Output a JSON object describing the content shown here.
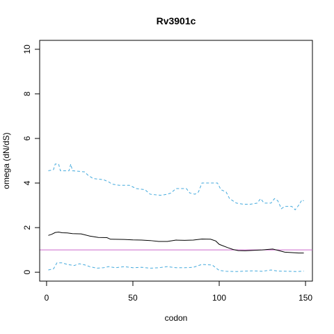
{
  "chart_data": {
    "type": "line",
    "title": "Rv3901c",
    "xlabel": "codon",
    "ylabel": "omega (dN/dS)",
    "xlim": [
      -4,
      154
    ],
    "ylim": [
      -0.4,
      10.4
    ],
    "xticks": [
      0,
      50,
      100,
      150
    ],
    "yticks": [
      0,
      2,
      4,
      6,
      8,
      10
    ],
    "grid": false,
    "reference_line": {
      "y": 1,
      "color": "#cc66cc"
    },
    "series": [
      {
        "style": "solid",
        "color": "#000000",
        "points": [
          [
            1,
            1.65
          ],
          [
            3,
            1.7
          ],
          [
            5,
            1.78
          ],
          [
            7,
            1.8
          ],
          [
            9,
            1.77
          ],
          [
            12,
            1.76
          ],
          [
            15,
            1.73
          ],
          [
            20,
            1.72
          ],
          [
            25,
            1.62
          ],
          [
            30,
            1.56
          ],
          [
            35,
            1.55
          ],
          [
            37,
            1.48
          ],
          [
            45,
            1.47
          ],
          [
            50,
            1.45
          ],
          [
            55,
            1.44
          ],
          [
            60,
            1.42
          ],
          [
            65,
            1.38
          ],
          [
            70,
            1.38
          ],
          [
            75,
            1.44
          ],
          [
            80,
            1.43
          ],
          [
            85,
            1.44
          ],
          [
            90,
            1.49
          ],
          [
            95,
            1.48
          ],
          [
            98,
            1.4
          ],
          [
            100,
            1.25
          ],
          [
            105,
            1.1
          ],
          [
            108,
            1.02
          ],
          [
            111,
            0.97
          ],
          [
            115,
            0.96
          ],
          [
            120,
            0.98
          ],
          [
            125,
            1.0
          ],
          [
            128,
            1.02
          ],
          [
            131,
            1.04
          ],
          [
            134,
            0.98
          ],
          [
            138,
            0.9
          ],
          [
            142,
            0.88
          ],
          [
            146,
            0.86
          ],
          [
            149,
            0.86
          ]
        ]
      },
      {
        "style": "dashed",
        "color": "#44aadd",
        "points": [
          [
            1,
            4.55
          ],
          [
            4,
            4.6
          ],
          [
            5,
            4.85
          ],
          [
            7,
            4.85
          ],
          [
            8,
            4.55
          ],
          [
            13,
            4.55
          ],
          [
            14,
            4.85
          ],
          [
            15,
            4.55
          ],
          [
            22,
            4.5
          ],
          [
            24,
            4.35
          ],
          [
            27,
            4.2
          ],
          [
            33,
            4.15
          ],
          [
            36,
            4.05
          ],
          [
            38,
            3.95
          ],
          [
            42,
            3.9
          ],
          [
            48,
            3.9
          ],
          [
            52,
            3.75
          ],
          [
            57,
            3.7
          ],
          [
            60,
            3.5
          ],
          [
            66,
            3.45
          ],
          [
            70,
            3.5
          ],
          [
            72,
            3.55
          ],
          [
            75,
            3.75
          ],
          [
            81,
            3.75
          ],
          [
            83,
            3.55
          ],
          [
            86,
            3.5
          ],
          [
            88,
            3.6
          ],
          [
            90,
            4.0
          ],
          [
            99,
            4.0
          ],
          [
            101,
            3.7
          ],
          [
            104,
            3.6
          ],
          [
            106,
            3.3
          ],
          [
            110,
            3.1
          ],
          [
            114,
            3.05
          ],
          [
            118,
            3.05
          ],
          [
            122,
            3.1
          ],
          [
            124,
            3.3
          ],
          [
            126,
            3.1
          ],
          [
            130,
            3.1
          ],
          [
            132,
            3.3
          ],
          [
            134,
            3.2
          ],
          [
            136,
            2.85
          ],
          [
            138,
            2.95
          ],
          [
            142,
            2.95
          ],
          [
            144,
            2.8
          ],
          [
            146,
            3.0
          ],
          [
            148,
            3.25
          ],
          [
            149,
            3.2
          ]
        ]
      },
      {
        "style": "dashed",
        "color": "#44aadd",
        "points": [
          [
            1,
            0.1
          ],
          [
            4,
            0.15
          ],
          [
            6,
            0.42
          ],
          [
            9,
            0.42
          ],
          [
            12,
            0.35
          ],
          [
            16,
            0.3
          ],
          [
            19,
            0.38
          ],
          [
            22,
            0.33
          ],
          [
            25,
            0.25
          ],
          [
            29,
            0.18
          ],
          [
            33,
            0.2
          ],
          [
            36,
            0.25
          ],
          [
            40,
            0.2
          ],
          [
            45,
            0.25
          ],
          [
            50,
            0.2
          ],
          [
            55,
            0.22
          ],
          [
            60,
            0.18
          ],
          [
            65,
            0.2
          ],
          [
            70,
            0.25
          ],
          [
            75,
            0.2
          ],
          [
            80,
            0.2
          ],
          [
            85,
            0.22
          ],
          [
            90,
            0.35
          ],
          [
            96,
            0.32
          ],
          [
            100,
            0.08
          ],
          [
            104,
            0.04
          ],
          [
            110,
            0.03
          ],
          [
            115,
            0.05
          ],
          [
            120,
            0.06
          ],
          [
            125,
            0.04
          ],
          [
            130,
            0.1
          ],
          [
            134,
            0.05
          ],
          [
            140,
            0.04
          ],
          [
            145,
            0.03
          ],
          [
            149,
            0.05
          ]
        ]
      }
    ]
  }
}
